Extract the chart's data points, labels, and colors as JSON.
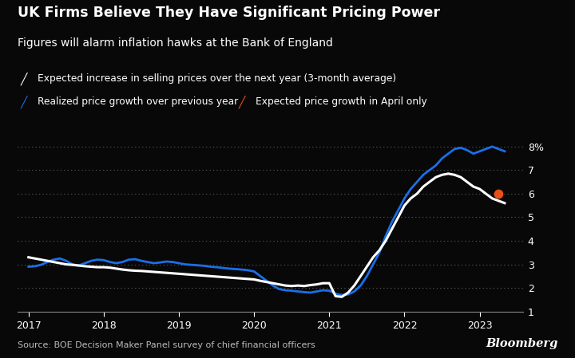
{
  "title": "UK Firms Believe They Have Significant Pricing Power",
  "subtitle": "Figures will alarm inflation hawks at the Bank of England",
  "legend1": "Expected increase in selling prices over the next year (3-month average)",
  "legend2": "Realized price growth over previous year",
  "legend3": "Expected price growth in April only",
  "source": "Source: BOE Decision Maker Panel survey of chief financial officers",
  "bloomberg": "Bloomberg",
  "bg_color": "#080808",
  "text_color": "#ffffff",
  "line1_color": "#ffffff",
  "line2_color": "#1a6fe8",
  "dot_color": "#e8501a",
  "ylim": [
    1,
    8.6
  ],
  "yticks": [
    1,
    2,
    3,
    4,
    5,
    6,
    7,
    8
  ],
  "ytick_labels": [
    "1",
    "2",
    "3",
    "4",
    "5",
    "6",
    "7",
    "8%"
  ],
  "xlim_left": 2016.85,
  "xlim_right": 2023.58,
  "xticks": [
    2017,
    2018,
    2019,
    2020,
    2021,
    2022,
    2023
  ],
  "white_line_x": [
    2017.0,
    2017.083,
    2017.167,
    2017.25,
    2017.333,
    2017.417,
    2017.5,
    2017.583,
    2017.667,
    2017.75,
    2017.833,
    2017.917,
    2018.0,
    2018.083,
    2018.167,
    2018.25,
    2018.333,
    2018.417,
    2018.5,
    2018.583,
    2018.667,
    2018.75,
    2018.833,
    2018.917,
    2019.0,
    2019.083,
    2019.167,
    2019.25,
    2019.333,
    2019.417,
    2019.5,
    2019.583,
    2019.667,
    2019.75,
    2019.833,
    2019.917,
    2020.0,
    2020.083,
    2020.167,
    2020.25,
    2020.333,
    2020.417,
    2020.5,
    2020.583,
    2020.667,
    2020.75,
    2020.833,
    2020.917,
    2021.0,
    2021.083,
    2021.167,
    2021.25,
    2021.333,
    2021.417,
    2021.5,
    2021.583,
    2021.667,
    2021.75,
    2021.833,
    2021.917,
    2022.0,
    2022.083,
    2022.167,
    2022.25,
    2022.333,
    2022.417,
    2022.5,
    2022.583,
    2022.667,
    2022.75,
    2022.833,
    2022.917,
    2023.0,
    2023.083,
    2023.167,
    2023.25,
    2023.333
  ],
  "white_line_y": [
    3.3,
    3.25,
    3.2,
    3.15,
    3.1,
    3.05,
    3.0,
    2.98,
    2.95,
    2.92,
    2.9,
    2.88,
    2.88,
    2.86,
    2.82,
    2.78,
    2.75,
    2.73,
    2.72,
    2.7,
    2.68,
    2.66,
    2.64,
    2.62,
    2.6,
    2.58,
    2.56,
    2.54,
    2.52,
    2.5,
    2.48,
    2.46,
    2.44,
    2.42,
    2.4,
    2.38,
    2.36,
    2.3,
    2.25,
    2.2,
    2.15,
    2.1,
    2.08,
    2.1,
    2.08,
    2.12,
    2.15,
    2.2,
    2.2,
    1.65,
    1.62,
    1.8,
    2.1,
    2.5,
    2.9,
    3.3,
    3.6,
    4.0,
    4.5,
    5.0,
    5.5,
    5.8,
    6.0,
    6.3,
    6.5,
    6.7,
    6.8,
    6.85,
    6.8,
    6.7,
    6.5,
    6.3,
    6.2,
    6.0,
    5.8,
    5.7,
    5.6
  ],
  "blue_line_x": [
    2017.0,
    2017.083,
    2017.167,
    2017.25,
    2017.333,
    2017.417,
    2017.5,
    2017.583,
    2017.667,
    2017.75,
    2017.833,
    2017.917,
    2018.0,
    2018.083,
    2018.167,
    2018.25,
    2018.333,
    2018.417,
    2018.5,
    2018.583,
    2018.667,
    2018.75,
    2018.833,
    2018.917,
    2019.0,
    2019.083,
    2019.167,
    2019.25,
    2019.333,
    2019.417,
    2019.5,
    2019.583,
    2019.667,
    2019.75,
    2019.833,
    2019.917,
    2020.0,
    2020.083,
    2020.167,
    2020.25,
    2020.333,
    2020.417,
    2020.5,
    2020.583,
    2020.667,
    2020.75,
    2020.833,
    2020.917,
    2021.0,
    2021.083,
    2021.167,
    2021.25,
    2021.333,
    2021.417,
    2021.5,
    2021.583,
    2021.667,
    2021.75,
    2021.833,
    2021.917,
    2022.0,
    2022.083,
    2022.167,
    2022.25,
    2022.333,
    2022.417,
    2022.5,
    2022.583,
    2022.667,
    2022.75,
    2022.833,
    2022.917,
    2023.0,
    2023.083,
    2023.167,
    2023.25,
    2023.333
  ],
  "blue_line_y": [
    2.9,
    2.92,
    2.98,
    3.1,
    3.2,
    3.25,
    3.15,
    3.0,
    2.95,
    3.05,
    3.15,
    3.2,
    3.18,
    3.1,
    3.05,
    3.1,
    3.2,
    3.22,
    3.15,
    3.1,
    3.05,
    3.08,
    3.12,
    3.1,
    3.05,
    3.0,
    2.98,
    2.96,
    2.94,
    2.9,
    2.88,
    2.85,
    2.82,
    2.8,
    2.78,
    2.75,
    2.7,
    2.5,
    2.3,
    2.1,
    1.95,
    1.9,
    1.88,
    1.85,
    1.82,
    1.8,
    1.85,
    1.9,
    1.88,
    1.75,
    1.7,
    1.72,
    1.85,
    2.1,
    2.5,
    3.0,
    3.5,
    4.2,
    4.8,
    5.3,
    5.8,
    6.2,
    6.5,
    6.8,
    7.0,
    7.2,
    7.5,
    7.7,
    7.9,
    7.95,
    7.85,
    7.7,
    7.8,
    7.9,
    8.0,
    7.9,
    7.8
  ],
  "april_dot_x": 2023.25,
  "april_dot_y": 6.0
}
